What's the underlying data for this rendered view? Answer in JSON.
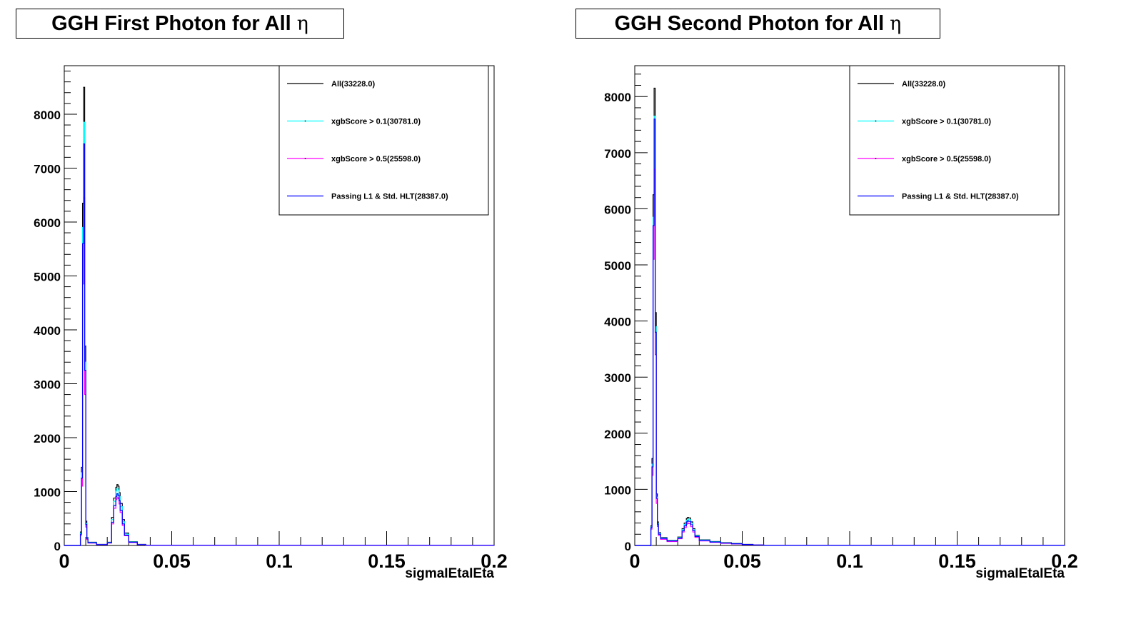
{
  "chart_data": [
    {
      "type": "line",
      "title": "GGH First Photon for All",
      "title_symbol": "η",
      "xlabel": "sigmaIEtaIEta",
      "ylabel": "",
      "xlim": [
        0,
        0.2
      ],
      "ylim": [
        0,
        8900
      ],
      "x_ticks": [
        "0",
        "0.05",
        "0.1",
        "0.15",
        "0.2"
      ],
      "y_ticks": [
        "0",
        "1000",
        "2000",
        "3000",
        "4000",
        "5000",
        "6000",
        "7000",
        "8000"
      ],
      "x_tick_values": [
        0,
        0.05,
        0.1,
        0.15,
        0.2
      ],
      "y_tick_values": [
        0,
        1000,
        2000,
        3000,
        4000,
        5000,
        6000,
        7000,
        8000
      ],
      "grid": false,
      "legend_position": "top-right",
      "series": [
        {
          "name": "All(33228.0)",
          "color": "#000000",
          "style": "solid",
          "x": [
            0.0,
            0.007,
            0.0075,
            0.008,
            0.0085,
            0.009,
            0.0095,
            0.01,
            0.0105,
            0.011,
            0.015,
            0.02,
            0.022,
            0.023,
            0.024,
            0.0245,
            0.025,
            0.0255,
            0.026,
            0.027,
            0.028,
            0.03,
            0.034,
            0.038,
            0.2
          ],
          "y": [
            0,
            0,
            250,
            1450,
            6350,
            8500,
            3700,
            450,
            150,
            60,
            20,
            60,
            520,
            880,
            1080,
            1130,
            1100,
            980,
            780,
            480,
            230,
            70,
            20,
            5,
            0
          ]
        },
        {
          "name": "xgbScore > 0.1(30781.0)",
          "color": "#00ffff",
          "style": "solid",
          "x": [
            0.0,
            0.007,
            0.0075,
            0.008,
            0.0085,
            0.009,
            0.0095,
            0.01,
            0.0105,
            0.011,
            0.015,
            0.02,
            0.022,
            0.023,
            0.024,
            0.0245,
            0.025,
            0.0255,
            0.026,
            0.027,
            0.028,
            0.03,
            0.034,
            0.038,
            0.2
          ],
          "y": [
            0,
            0,
            230,
            1350,
            5900,
            7850,
            3400,
            410,
            140,
            55,
            18,
            55,
            480,
            820,
            1010,
            1060,
            1030,
            910,
            720,
            440,
            210,
            65,
            18,
            4,
            0
          ]
        },
        {
          "name": "xgbScore > 0.5(25598.0)",
          "color": "#ff00ff",
          "style": "solid",
          "x": [
            0.0,
            0.007,
            0.0075,
            0.008,
            0.0085,
            0.009,
            0.0095,
            0.01,
            0.0105,
            0.011,
            0.015,
            0.02,
            0.022,
            0.023,
            0.024,
            0.0245,
            0.025,
            0.0255,
            0.026,
            0.027,
            0.028,
            0.03,
            0.034,
            0.038,
            0.2
          ],
          "y": [
            0,
            0,
            190,
            1100,
            4850,
            6450,
            2800,
            340,
            110,
            45,
            15,
            45,
            400,
            690,
            850,
            890,
            870,
            770,
            610,
            370,
            180,
            55,
            15,
            3,
            0
          ]
        },
        {
          "name": "Passing L1 & Std. HLT(28387.0)",
          "color": "#0000ff",
          "style": "solid",
          "x": [
            0.0,
            0.007,
            0.0075,
            0.008,
            0.0085,
            0.009,
            0.0095,
            0.01,
            0.0105,
            0.011,
            0.015,
            0.02,
            0.022,
            0.023,
            0.024,
            0.0245,
            0.025,
            0.0255,
            0.026,
            0.027,
            0.028,
            0.03,
            0.034,
            0.038,
            0.2
          ],
          "y": [
            0,
            0,
            210,
            1250,
            5600,
            7450,
            3250,
            390,
            130,
            50,
            16,
            50,
            430,
            740,
            910,
            960,
            930,
            830,
            650,
            400,
            190,
            60,
            16,
            4,
            0
          ]
        }
      ]
    },
    {
      "type": "line",
      "title": "GGH Second Photon for All",
      "title_symbol": "η",
      "xlabel": "sigmaIEtaIEta",
      "ylabel": "",
      "xlim": [
        0,
        0.2
      ],
      "ylim": [
        0,
        8550
      ],
      "x_ticks": [
        "0",
        "0.05",
        "0.1",
        "0.15",
        "0.2"
      ],
      "y_ticks": [
        "0",
        "1000",
        "2000",
        "3000",
        "4000",
        "5000",
        "6000",
        "7000",
        "8000"
      ],
      "x_tick_values": [
        0,
        0.05,
        0.1,
        0.15,
        0.2
      ],
      "y_tick_values": [
        0,
        1000,
        2000,
        3000,
        4000,
        5000,
        6000,
        7000,
        8000
      ],
      "grid": false,
      "legend_position": "top-right",
      "series": [
        {
          "name": "All(33228.0)",
          "color": "#000000",
          "style": "solid",
          "x": [
            0.0,
            0.007,
            0.0075,
            0.008,
            0.0085,
            0.009,
            0.0095,
            0.01,
            0.0105,
            0.011,
            0.012,
            0.015,
            0.02,
            0.022,
            0.023,
            0.024,
            0.0245,
            0.025,
            0.026,
            0.027,
            0.028,
            0.03,
            0.035,
            0.04,
            0.045,
            0.05,
            0.055,
            0.06,
            0.2
          ],
          "y": [
            0,
            0,
            350,
            1550,
            6250,
            8150,
            4150,
            920,
            420,
            230,
            140,
            90,
            150,
            300,
            400,
            480,
            500,
            490,
            420,
            300,
            180,
            100,
            70,
            50,
            35,
            20,
            10,
            3,
            0
          ]
        },
        {
          "name": "xgbScore > 0.1(30781.0)",
          "color": "#00ffff",
          "style": "solid",
          "x": [
            0.0,
            0.007,
            0.0075,
            0.008,
            0.0085,
            0.009,
            0.0095,
            0.01,
            0.0105,
            0.011,
            0.012,
            0.015,
            0.02,
            0.022,
            0.023,
            0.024,
            0.0245,
            0.025,
            0.026,
            0.027,
            0.028,
            0.03,
            0.035,
            0.04,
            0.045,
            0.05,
            0.055,
            0.06,
            0.2
          ],
          "y": [
            0,
            0,
            330,
            1450,
            5850,
            7650,
            3900,
            860,
            390,
            210,
            130,
            85,
            140,
            280,
            375,
            450,
            470,
            460,
            395,
            280,
            170,
            95,
            65,
            45,
            32,
            18,
            9,
            3,
            0
          ]
        },
        {
          "name": "xgbScore > 0.5(25598.0)",
          "color": "#ff00ff",
          "style": "solid",
          "x": [
            0.0,
            0.007,
            0.0075,
            0.008,
            0.0085,
            0.009,
            0.0095,
            0.01,
            0.0105,
            0.011,
            0.012,
            0.015,
            0.02,
            0.022,
            0.023,
            0.024,
            0.0245,
            0.025,
            0.026,
            0.027,
            0.028,
            0.03,
            0.035,
            0.04,
            0.045,
            0.05,
            0.055,
            0.06,
            0.2
          ],
          "y": [
            0,
            0,
            290,
            1250,
            5100,
            6700,
            3400,
            750,
            340,
            180,
            110,
            70,
            120,
            240,
            320,
            380,
            400,
            390,
            335,
            240,
            145,
            80,
            55,
            38,
            27,
            15,
            8,
            2,
            0
          ]
        },
        {
          "name": "Passing L1 & Std. HLT(28387.0)",
          "color": "#0000ff",
          "style": "solid",
          "x": [
            0.0,
            0.007,
            0.0075,
            0.008,
            0.0085,
            0.009,
            0.0095,
            0.01,
            0.0105,
            0.011,
            0.012,
            0.015,
            0.02,
            0.022,
            0.023,
            0.024,
            0.0245,
            0.025,
            0.026,
            0.027,
            0.028,
            0.03,
            0.035,
            0.04,
            0.045,
            0.05,
            0.055,
            0.06,
            0.2
          ],
          "y": [
            0,
            0,
            320,
            1400,
            5700,
            7600,
            3800,
            840,
            380,
            200,
            125,
            80,
            130,
            260,
            350,
            420,
            440,
            430,
            370,
            265,
            160,
            88,
            60,
            42,
            30,
            17,
            9,
            2,
            0
          ]
        }
      ]
    }
  ]
}
